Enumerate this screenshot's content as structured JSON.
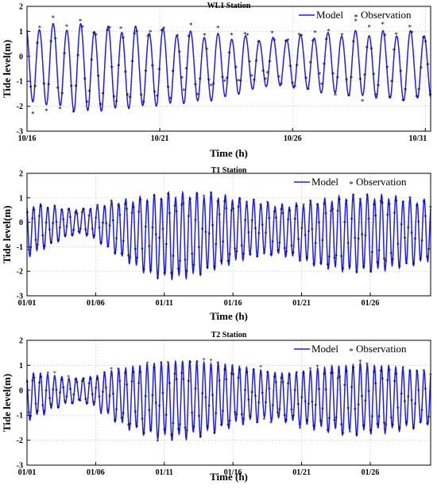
{
  "colors": {
    "model": "#1f1fe0",
    "observation": "#ff2a2a"
  },
  "chart_data": [
    {
      "type": "line",
      "title": "WL1 Station",
      "xlabel": "Time (h)",
      "ylabel": "Tide level(m)",
      "x_unit": "day",
      "x_range": [
        "10/16",
        "10/31"
      ],
      "ylim": [
        -3,
        2
      ],
      "yticks": [
        -3,
        -2,
        -1,
        0,
        1,
        2
      ],
      "xticks": [
        "10/16",
        "10/21",
        "10/26",
        "10/31"
      ],
      "grid": true,
      "legend_position": "top-right",
      "legend": [
        "Model",
        "Observation"
      ],
      "series": [
        {
          "name": "Model",
          "kind": "line",
          "period_days": 0.5175,
          "peak_highs": [
            1.3,
            1.4,
            1.3,
            1.0,
            0.8,
            0.9,
            1.1,
            1.2
          ],
          "daily_highs": [
            1.4,
            1.4,
            1.4,
            1.3,
            1.3,
            1.2,
            1.1,
            1.0,
            0.9,
            0.8,
            0.9,
            1.0,
            1.1,
            1.1,
            1.1,
            1.1
          ],
          "daily_lows": [
            -1.9,
            -2.0,
            -2.3,
            -2.2,
            -2.1,
            -2.0,
            -1.9,
            -1.8,
            -1.5,
            -1.2,
            -1.3,
            -1.5,
            -1.6,
            -1.7,
            -1.8,
            -1.7
          ]
        },
        {
          "name": "Observation",
          "kind": "scatter",
          "daily_highs": [
            1.5,
            1.5,
            1.6,
            1.4,
            1.4,
            1.3,
            1.3,
            1.2,
            1.2,
            1.1,
            1.2,
            1.2,
            1.3,
            1.3,
            1.2,
            1.2
          ],
          "daily_lows": [
            -2.2,
            -2.3,
            -2.0,
            -1.9,
            -1.8,
            -1.7,
            -1.6,
            -1.4,
            -1.2,
            -1.0,
            -1.1,
            -1.3,
            -1.6,
            -1.8,
            -1.9,
            -1.8
          ]
        }
      ]
    },
    {
      "type": "line",
      "title": "T1 Station",
      "xlabel": "Time (h)",
      "ylabel": "Tide level(m)",
      "x_unit": "day",
      "x_range": [
        "01/01",
        "01/30"
      ],
      "ylim": [
        -3,
        2
      ],
      "yticks": [
        -3,
        -2,
        -1,
        0,
        1,
        2
      ],
      "xticks": [
        "01/01",
        "01/06",
        "01/11",
        "01/16",
        "01/21",
        "01/26"
      ],
      "grid": true,
      "legend_position": "top-right",
      "legend": [
        "Model",
        "Observation"
      ],
      "series": [
        {
          "name": "Model",
          "kind": "line",
          "daily_highs": [
            0.8,
            0.8,
            0.7,
            0.6,
            0.6,
            0.7,
            0.9,
            1.0,
            1.1,
            1.2,
            1.3,
            1.3,
            1.3,
            1.3,
            1.2,
            1.1,
            1.0,
            0.9,
            0.8,
            0.8,
            0.9,
            1.0,
            1.1,
            1.2,
            1.2,
            1.2,
            1.2,
            1.1,
            1.0,
            1.0
          ],
          "daily_lows": [
            -1.5,
            -1.2,
            -0.9,
            -0.6,
            -0.5,
            -0.8,
            -1.2,
            -1.6,
            -2.0,
            -2.3,
            -2.4,
            -2.4,
            -2.3,
            -2.1,
            -1.9,
            -1.7,
            -1.5,
            -1.4,
            -1.4,
            -1.5,
            -1.7,
            -1.9,
            -2.0,
            -2.1,
            -2.1,
            -2.1,
            -2.0,
            -1.9,
            -1.8,
            -1.6
          ]
        },
        {
          "name": "Observation",
          "kind": "scatter",
          "note": "sampled along model curve"
        }
      ]
    },
    {
      "type": "line",
      "title": "T2 Station",
      "xlabel": "Time (h)",
      "ylabel": "Tide level(m)",
      "x_unit": "day",
      "x_range": [
        "01/01",
        "01/30"
      ],
      "ylim": [
        -3,
        2
      ],
      "yticks": [
        -3,
        -2,
        -1,
        0,
        1,
        2
      ],
      "xticks": [
        "01/01",
        "01/06",
        "01/11",
        "01/16",
        "01/21",
        "01/26"
      ],
      "grid": true,
      "legend_position": "top-right",
      "legend": [
        "Model",
        "Observation"
      ],
      "series": [
        {
          "name": "Model",
          "kind": "line",
          "daily_highs": [
            0.7,
            0.7,
            0.6,
            0.5,
            0.5,
            0.6,
            0.8,
            0.9,
            1.0,
            1.1,
            1.1,
            1.2,
            1.2,
            1.1,
            1.1,
            1.0,
            0.9,
            0.8,
            0.7,
            0.7,
            0.8,
            0.9,
            1.0,
            1.0,
            1.1,
            1.0,
            1.0,
            0.9,
            0.8,
            0.8
          ],
          "daily_lows": [
            -1.3,
            -1.1,
            -0.8,
            -0.6,
            -0.5,
            -0.8,
            -1.2,
            -1.6,
            -1.8,
            -2.0,
            -2.1,
            -2.1,
            -2.0,
            -1.9,
            -1.7,
            -1.5,
            -1.4,
            -1.3,
            -1.3,
            -1.4,
            -1.6,
            -1.7,
            -1.8,
            -1.9,
            -1.9,
            -1.8,
            -1.8,
            -1.7,
            -1.6,
            -1.4
          ]
        },
        {
          "name": "Observation",
          "kind": "scatter",
          "note": "sampled along model curve"
        }
      ]
    }
  ]
}
